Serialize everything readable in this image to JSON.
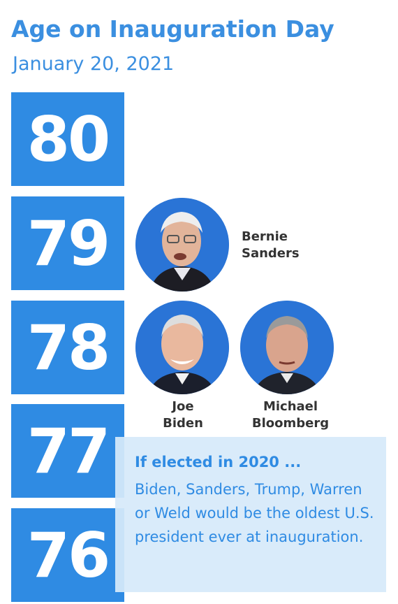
{
  "header": {
    "title": "Age on Inauguration Day",
    "subtitle": "January 20, 2021"
  },
  "ages": [
    "80",
    "79",
    "78",
    "77",
    "76"
  ],
  "candidates": [
    {
      "first": "Bernie",
      "last": "Sanders",
      "age": "79"
    },
    {
      "first": "Joe",
      "last": "Biden",
      "age": "78"
    },
    {
      "first": "Michael",
      "last": "Bloomberg",
      "age": "78"
    }
  ],
  "note": {
    "heading": "If elected in 2020 ...",
    "body": "Biden, Sanders, Trump, Warren or Weld would be the oldest U.S. president ever at inauguration."
  },
  "colors": {
    "accent": "#2f8be3",
    "photo_bg": "#2a74d6",
    "note_bg": "#d6eafa",
    "name_text": "#333333"
  }
}
